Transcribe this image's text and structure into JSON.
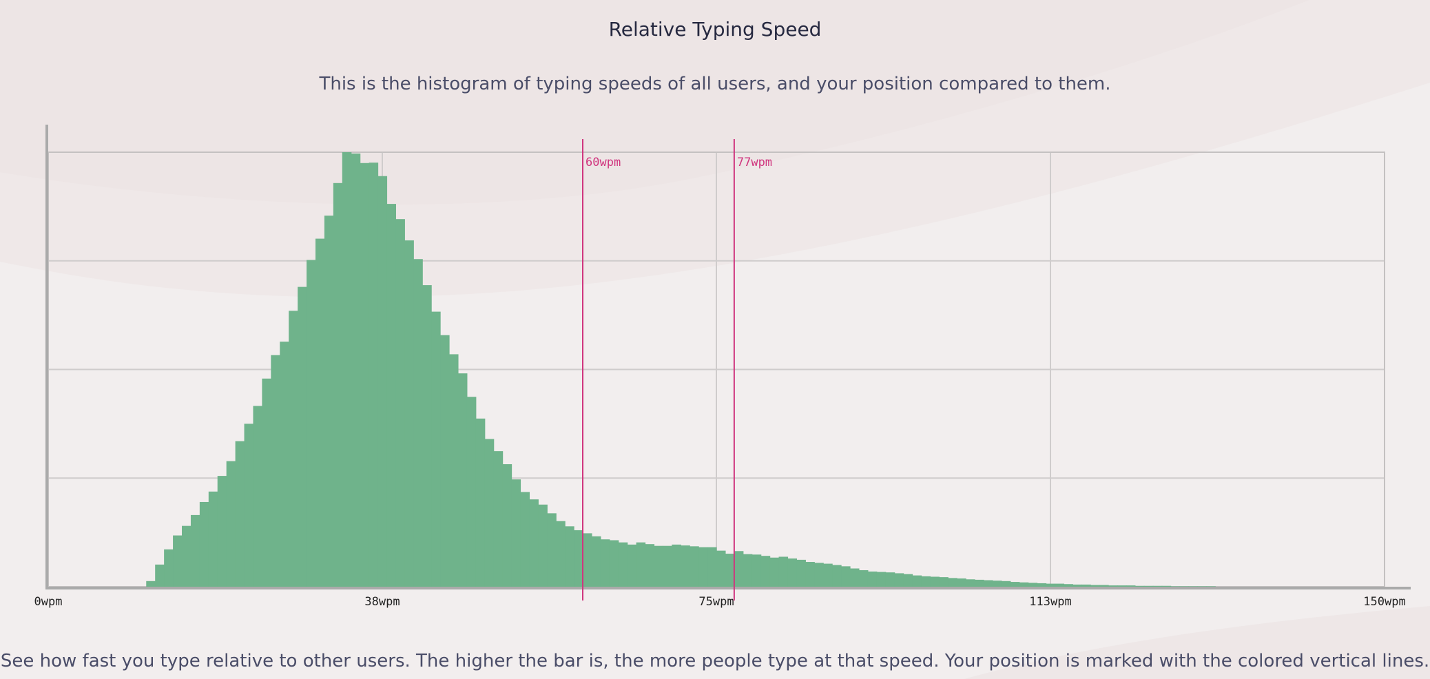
{
  "page": {
    "title": "Relative Typing Speed",
    "subtitle": "This is the histogram of typing speeds of all users, and your position compared to them.",
    "footer": "See how fast you type relative to other users. The higher the bar is, the more people type at that speed. Your position is marked with the colored vertical lines."
  },
  "colors": {
    "bar": "#6fb38b",
    "marker": "#d0357e",
    "grid": "#cfcccc",
    "axis": "#aaaaaa",
    "tick_text": "#222222"
  },
  "chart_data": {
    "type": "bar",
    "title": "Relative Typing Speed",
    "xlabel": "",
    "ylabel": "",
    "xlim": [
      0,
      150
    ],
    "ylim": [
      0,
      100
    ],
    "grid": true,
    "x_ticks": [
      {
        "value": 0,
        "label": "0wpm"
      },
      {
        "value": 37.5,
        "label": "38wpm"
      },
      {
        "value": 75,
        "label": "75wpm"
      },
      {
        "value": 112.5,
        "label": "113wpm"
      },
      {
        "value": 150,
        "label": "150wpm"
      }
    ],
    "y_gridlines": [
      0,
      25,
      50,
      75,
      100
    ],
    "markers": [
      {
        "value": 60,
        "label": "60wpm"
      },
      {
        "value": 77,
        "label": "77wpm"
      }
    ],
    "bin_width": 1,
    "bin_start": 0,
    "values": [
      0,
      0,
      0,
      0,
      0,
      0,
      0,
      0,
      0,
      0,
      0,
      1.3,
      5.1,
      8.6,
      11.8,
      14,
      16.5,
      19.5,
      21.9,
      25.5,
      28.9,
      33.5,
      37.5,
      41.6,
      47.9,
      53.3,
      56.4,
      63.5,
      69,
      75.2,
      80.1,
      85.4,
      92.9,
      100,
      99.7,
      97.5,
      97.6,
      94.5,
      88.1,
      84.6,
      79.7,
      75.4,
      69.4,
      63.3,
      57.9,
      53.5,
      49.1,
      43.7,
      38.7,
      34,
      31.2,
      28.2,
      24.7,
      21.8,
      20.1,
      18.9,
      16.9,
      15.1,
      13.9,
      13,
      12.3,
      11.6,
      10.9,
      10.7,
      10.2,
      9.7,
      10.2,
      9.8,
      9.4,
      9.4,
      9.7,
      9.5,
      9.3,
      9.1,
      9.1,
      8.3,
      7.6,
      8.2,
      7.5,
      7.4,
      7.1,
      6.7,
      6.9,
      6.5,
      6.2,
      5.7,
      5.5,
      5.3,
      5,
      4.7,
      4.2,
      3.8,
      3.5,
      3.4,
      3.3,
      3.1,
      2.9,
      2.6,
      2.4,
      2.3,
      2.2,
      2,
      1.9,
      1.7,
      1.6,
      1.5,
      1.4,
      1.3,
      1.1,
      1,
      0.9,
      0.8,
      0.7,
      0.7,
      0.6,
      0.5,
      0.5,
      0.4,
      0.4,
      0.3,
      0.3,
      0.3,
      0.2,
      0.2,
      0.2,
      0.2,
      0.1,
      0.1,
      0.1,
      0.1,
      0.1,
      0,
      0,
      0,
      0,
      0,
      0,
      0,
      0,
      0,
      0,
      0,
      0,
      0,
      0,
      0,
      0,
      0,
      0,
      0,
      0
    ]
  }
}
